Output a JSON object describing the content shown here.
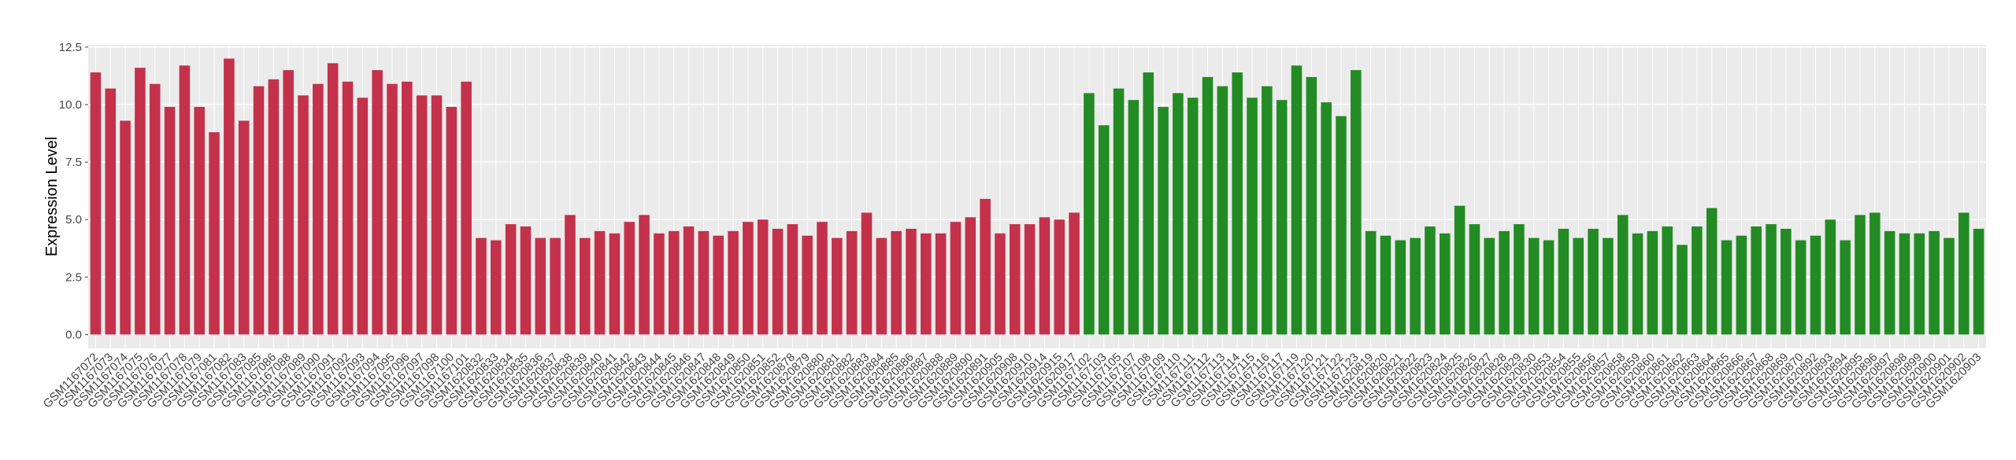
{
  "chart_data": {
    "type": "bar",
    "y_label": "Expression Level",
    "categories": [
      "GSM1167072",
      "GSM1167073",
      "GSM1167074",
      "GSM1167075",
      "GSM1167076",
      "GSM1167077",
      "GSM1167078",
      "GSM1167079",
      "GSM1167081",
      "GSM1167082",
      "GSM1167083",
      "GSM1167085",
      "GSM1167086",
      "GSM1167088",
      "GSM1167089",
      "GSM1167090",
      "GSM1167091",
      "GSM1167092",
      "GSM1167093",
      "GSM1167094",
      "GSM1167095",
      "GSM1167096",
      "GSM1167097",
      "GSM1167098",
      "GSM1167100",
      "GSM1167101",
      "GSM1620832",
      "GSM1620833",
      "GSM1620834",
      "GSM1620835",
      "GSM1620836",
      "GSM1620837",
      "GSM1620838",
      "GSM1620839",
      "GSM1620840",
      "GSM1620841",
      "GSM1620842",
      "GSM1620843",
      "GSM1620844",
      "GSM1620845",
      "GSM1620846",
      "GSM1620847",
      "GSM1620848",
      "GSM1620849",
      "GSM1620850",
      "GSM1620851",
      "GSM1620852",
      "GSM1620878",
      "GSM1620879",
      "GSM1620880",
      "GSM1620881",
      "GSM1620882",
      "GSM1620883",
      "GSM1620884",
      "GSM1620885",
      "GSM1620886",
      "GSM1620887",
      "GSM1620888",
      "GSM1620889",
      "GSM1620890",
      "GSM1620891",
      "GSM1620905",
      "GSM1620908",
      "GSM1620910",
      "GSM1620914",
      "GSM1620915",
      "GSM1620917",
      "GSM1167102",
      "GSM1167103",
      "GSM1167105",
      "GSM1167107",
      "GSM1167108",
      "GSM1167109",
      "GSM1167110",
      "GSM1167111",
      "GSM1167112",
      "GSM1167113",
      "GSM1167114",
      "GSM1167115",
      "GSM1167116",
      "GSM1167117",
      "GSM1167119",
      "GSM1167120",
      "GSM1167121",
      "GSM1167122",
      "GSM1167123",
      "GSM1620819",
      "GSM1620820",
      "GSM1620821",
      "GSM1620822",
      "GSM1620823",
      "GSM1620824",
      "GSM1620825",
      "GSM1620826",
      "GSM1620827",
      "GSM1620828",
      "GSM1620829",
      "GSM1620830",
      "GSM1620853",
      "GSM1620854",
      "GSM1620855",
      "GSM1620856",
      "GSM1620857",
      "GSM1620858",
      "GSM1620859",
      "GSM1620860",
      "GSM1620861",
      "GSM1620862",
      "GSM1620863",
      "GSM1620864",
      "GSM1620865",
      "GSM1620866",
      "GSM1620867",
      "GSM1620868",
      "GSM1620869",
      "GSM1620870",
      "GSM1620892",
      "GSM1620893",
      "GSM1620894",
      "GSM1620895",
      "GSM1620896",
      "GSM1620897",
      "GSM1620898",
      "GSM1620899",
      "GSM1620900",
      "GSM1620901",
      "GSM1620902",
      "GSM1620903"
    ],
    "values": [
      11.4,
      10.7,
      9.3,
      11.6,
      10.9,
      9.9,
      11.7,
      9.9,
      8.8,
      12.0,
      9.3,
      10.8,
      11.1,
      11.5,
      10.4,
      10.9,
      11.8,
      11.0,
      10.3,
      11.5,
      10.9,
      11.0,
      10.4,
      10.4,
      9.9,
      11.0,
      4.2,
      4.1,
      4.8,
      4.7,
      4.2,
      4.2,
      5.2,
      4.2,
      4.5,
      4.4,
      4.9,
      5.2,
      4.4,
      4.5,
      4.7,
      4.5,
      4.3,
      4.5,
      4.9,
      5.0,
      4.6,
      4.8,
      4.3,
      4.9,
      4.2,
      4.5,
      5.3,
      4.2,
      4.5,
      4.6,
      4.4,
      4.4,
      4.9,
      5.1,
      5.9,
      4.4,
      4.8,
      4.8,
      5.1,
      5.0,
      5.3,
      10.5,
      9.1,
      10.7,
      10.2,
      11.4,
      9.9,
      10.5,
      10.3,
      11.2,
      10.8,
      11.4,
      10.3,
      10.8,
      10.2,
      11.7,
      11.2,
      10.1,
      9.5,
      11.5,
      4.5,
      4.3,
      4.1,
      4.2,
      4.7,
      4.4,
      5.6,
      4.8,
      4.2,
      4.5,
      4.8,
      4.2,
      4.1,
      4.6,
      4.2,
      4.6,
      4.2,
      5.2,
      4.4,
      4.5,
      4.7,
      3.9,
      4.7,
      5.5,
      4.1,
      4.3,
      4.7,
      4.8,
      4.6,
      4.1,
      4.3,
      5.0,
      4.1,
      5.2,
      5.3,
      4.5,
      4.4,
      4.4,
      4.5,
      4.2,
      5.3,
      4.6
    ],
    "colors": [
      "#c4314b",
      "#c4314b",
      "#c4314b",
      "#c4314b",
      "#c4314b",
      "#c4314b",
      "#c4314b",
      "#c4314b",
      "#c4314b",
      "#c4314b",
      "#c4314b",
      "#c4314b",
      "#c4314b",
      "#c4314b",
      "#c4314b",
      "#c4314b",
      "#c4314b",
      "#c4314b",
      "#c4314b",
      "#c4314b",
      "#c4314b",
      "#c4314b",
      "#c4314b",
      "#c4314b",
      "#c4314b",
      "#c4314b",
      "#c4314b",
      "#c4314b",
      "#c4314b",
      "#c4314b",
      "#c4314b",
      "#c4314b",
      "#c4314b",
      "#c4314b",
      "#c4314b",
      "#c4314b",
      "#c4314b",
      "#c4314b",
      "#c4314b",
      "#c4314b",
      "#c4314b",
      "#c4314b",
      "#c4314b",
      "#c4314b",
      "#c4314b",
      "#c4314b",
      "#c4314b",
      "#c4314b",
      "#c4314b",
      "#c4314b",
      "#c4314b",
      "#c4314b",
      "#c4314b",
      "#c4314b",
      "#c4314b",
      "#c4314b",
      "#c4314b",
      "#c4314b",
      "#c4314b",
      "#c4314b",
      "#c4314b",
      "#c4314b",
      "#c4314b",
      "#c4314b",
      "#c4314b",
      "#c4314b",
      "#c4314b",
      "#238b23",
      "#238b23",
      "#238b23",
      "#238b23",
      "#238b23",
      "#238b23",
      "#238b23",
      "#238b23",
      "#238b23",
      "#238b23",
      "#238b23",
      "#238b23",
      "#238b23",
      "#238b23",
      "#238b23",
      "#238b23",
      "#238b23",
      "#238b23",
      "#238b23",
      "#238b23",
      "#238b23",
      "#238b23",
      "#238b23",
      "#238b23",
      "#238b23",
      "#238b23",
      "#238b23",
      "#238b23",
      "#238b23",
      "#238b23",
      "#238b23",
      "#238b23",
      "#238b23",
      "#238b23",
      "#238b23",
      "#238b23",
      "#238b23",
      "#238b23",
      "#238b23",
      "#238b23",
      "#238b23",
      "#238b23",
      "#238b23",
      "#238b23",
      "#238b23",
      "#238b23",
      "#238b23",
      "#238b23",
      "#238b23",
      "#238b23",
      "#238b23",
      "#238b23",
      "#238b23",
      "#238b23",
      "#238b23",
      "#238b23",
      "#238b23",
      "#238b23",
      "#238b23",
      "#238b23",
      "#238b23"
    ],
    "ylim": [
      -0.6,
      12.6
    ],
    "yticks": [
      {
        "value": 0,
        "label": "0.0"
      },
      2.5,
      {
        "value": 5,
        "label": "5.0"
      },
      7.5,
      {
        "value": 10,
        "label": "10.0"
      },
      12.5
    ],
    "grid": true
  }
}
